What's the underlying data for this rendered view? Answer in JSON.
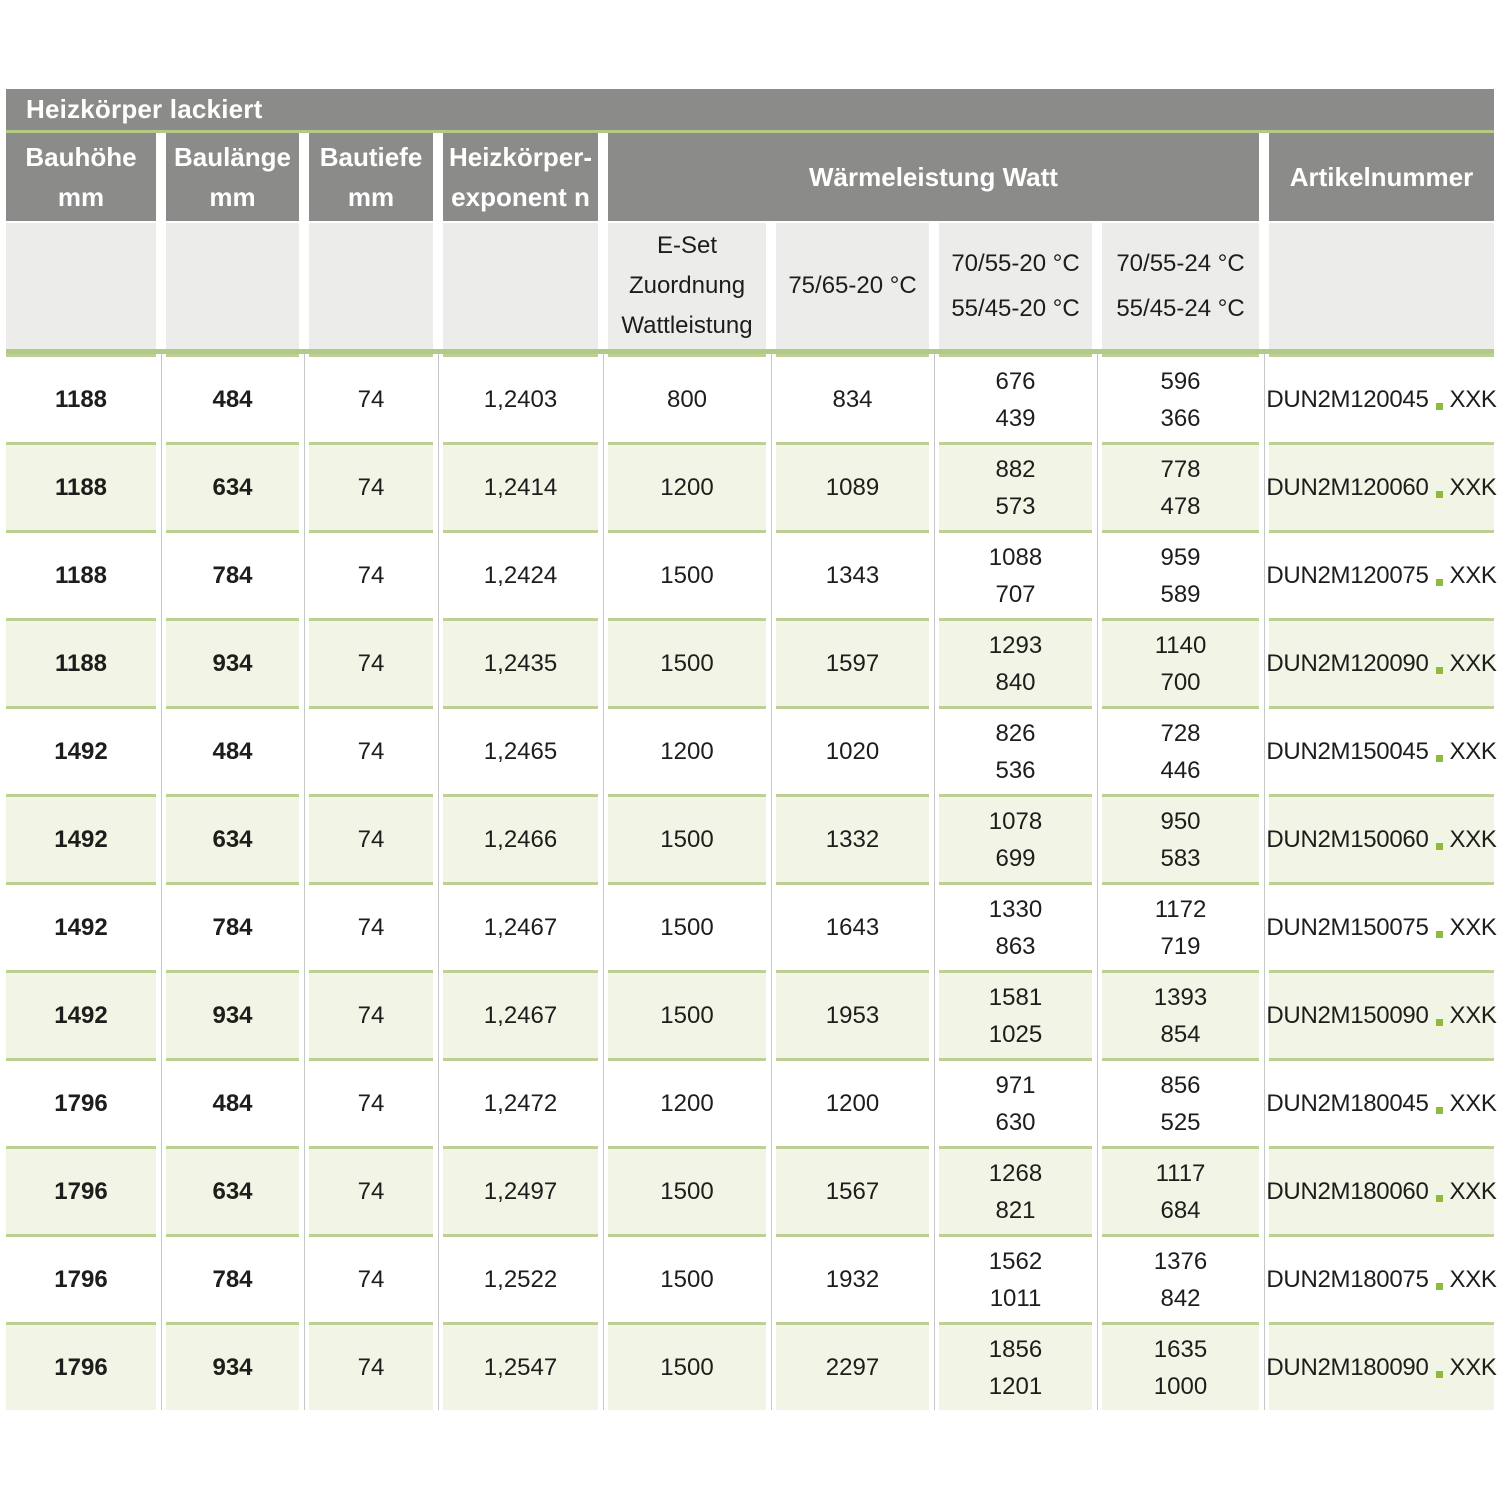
{
  "table": {
    "title": "Heizkörper lackiert",
    "main_headers": [
      {
        "id": "bauhoehe",
        "lines": [
          "Bauhöhe",
          "mm"
        ]
      },
      {
        "id": "baulaenge",
        "lines": [
          "Baulänge",
          "mm"
        ]
      },
      {
        "id": "bautiefe",
        "lines": [
          "Bautiefe",
          "mm"
        ]
      },
      {
        "id": "exponent",
        "lines": [
          "Heizkörper-",
          "exponent n"
        ]
      },
      {
        "id": "waermeleistung",
        "lines": [
          "Wärmeleistung Watt"
        ]
      },
      {
        "id": "artikelnummer",
        "lines": [
          "Artikelnummer"
        ]
      }
    ],
    "sub_headers": [
      {
        "id": "bauhoehe",
        "lines": []
      },
      {
        "id": "baulaenge",
        "lines": []
      },
      {
        "id": "bautiefe",
        "lines": []
      },
      {
        "id": "exponent",
        "lines": []
      },
      {
        "id": "eset",
        "lines": [
          "E-Set",
          "Zuordnung",
          "Wattleistung"
        ]
      },
      {
        "id": "w7565_20",
        "lines": [
          "75/65-20 °C"
        ]
      },
      {
        "id": "w7055_20",
        "lines": [
          "70/55-20 °C",
          "55/45-20 °C"
        ]
      },
      {
        "id": "w7055_24",
        "lines": [
          "70/55-24 °C",
          "55/45-24 °C"
        ]
      },
      {
        "id": "artikelnummer",
        "lines": []
      }
    ],
    "rows": [
      {
        "bauhoehe": "1188",
        "baulaenge": "484",
        "bautiefe": "74",
        "exponent_n": "1,2403",
        "eset_watt": "800",
        "w_7565_20": "834",
        "w_7055_20": [
          "676",
          "439"
        ],
        "w_7055_24": [
          "596",
          "366"
        ],
        "artikel": {
          "code": "DUN2M120045",
          "separator": ".",
          "suffix": "XXK"
        }
      },
      {
        "bauhoehe": "1188",
        "baulaenge": "634",
        "bautiefe": "74",
        "exponent_n": "1,2414",
        "eset_watt": "1200",
        "w_7565_20": "1089",
        "w_7055_20": [
          "882",
          "573"
        ],
        "w_7055_24": [
          "778",
          "478"
        ],
        "artikel": {
          "code": "DUN2M120060",
          "separator": ".",
          "suffix": "XXK"
        }
      },
      {
        "bauhoehe": "1188",
        "baulaenge": "784",
        "bautiefe": "74",
        "exponent_n": "1,2424",
        "eset_watt": "1500",
        "w_7565_20": "1343",
        "w_7055_20": [
          "1088",
          "707"
        ],
        "w_7055_24": [
          "959",
          "589"
        ],
        "artikel": {
          "code": "DUN2M120075",
          "separator": ".",
          "suffix": "XXK"
        }
      },
      {
        "bauhoehe": "1188",
        "baulaenge": "934",
        "bautiefe": "74",
        "exponent_n": "1,2435",
        "eset_watt": "1500",
        "w_7565_20": "1597",
        "w_7055_20": [
          "1293",
          "840"
        ],
        "w_7055_24": [
          "1140",
          "700"
        ],
        "artikel": {
          "code": "DUN2M120090",
          "separator": ".",
          "suffix": "XXK"
        }
      },
      {
        "bauhoehe": "1492",
        "baulaenge": "484",
        "bautiefe": "74",
        "exponent_n": "1,2465",
        "eset_watt": "1200",
        "w_7565_20": "1020",
        "w_7055_20": [
          "826",
          "536"
        ],
        "w_7055_24": [
          "728",
          "446"
        ],
        "artikel": {
          "code": "DUN2M150045",
          "separator": ".",
          "suffix": "XXK"
        }
      },
      {
        "bauhoehe": "1492",
        "baulaenge": "634",
        "bautiefe": "74",
        "exponent_n": "1,2466",
        "eset_watt": "1500",
        "w_7565_20": "1332",
        "w_7055_20": [
          "1078",
          "699"
        ],
        "w_7055_24": [
          "950",
          "583"
        ],
        "artikel": {
          "code": "DUN2M150060",
          "separator": ".",
          "suffix": "XXK"
        }
      },
      {
        "bauhoehe": "1492",
        "baulaenge": "784",
        "bautiefe": "74",
        "exponent_n": "1,2467",
        "eset_watt": "1500",
        "w_7565_20": "1643",
        "w_7055_20": [
          "1330",
          "863"
        ],
        "w_7055_24": [
          "1172",
          "719"
        ],
        "artikel": {
          "code": "DUN2M150075",
          "separator": ".",
          "suffix": "XXK"
        }
      },
      {
        "bauhoehe": "1492",
        "baulaenge": "934",
        "bautiefe": "74",
        "exponent_n": "1,2467",
        "eset_watt": "1500",
        "w_7565_20": "1953",
        "w_7055_20": [
          "1581",
          "1025"
        ],
        "w_7055_24": [
          "1393",
          "854"
        ],
        "artikel": {
          "code": "DUN2M150090",
          "separator": ".",
          "suffix": "XXK"
        }
      },
      {
        "bauhoehe": "1796",
        "baulaenge": "484",
        "bautiefe": "74",
        "exponent_n": "1,2472",
        "eset_watt": "1200",
        "w_7565_20": "1200",
        "w_7055_20": [
          "971",
          "630"
        ],
        "w_7055_24": [
          "856",
          "525"
        ],
        "artikel": {
          "code": "DUN2M180045",
          "separator": ".",
          "suffix": "XXK"
        }
      },
      {
        "bauhoehe": "1796",
        "baulaenge": "634",
        "bautiefe": "74",
        "exponent_n": "1,2497",
        "eset_watt": "1500",
        "w_7565_20": "1567",
        "w_7055_20": [
          "1268",
          "821"
        ],
        "w_7055_24": [
          "1117",
          "684"
        ],
        "artikel": {
          "code": "DUN2M180060",
          "separator": ".",
          "suffix": "XXK"
        }
      },
      {
        "bauhoehe": "1796",
        "baulaenge": "784",
        "bautiefe": "74",
        "exponent_n": "1,2522",
        "eset_watt": "1500",
        "w_7565_20": "1932",
        "w_7055_20": [
          "1562",
          "1011"
        ],
        "w_7055_24": [
          "1376",
          "842"
        ],
        "artikel": {
          "code": "DUN2M180075",
          "separator": ".",
          "suffix": "XXK"
        }
      },
      {
        "bauhoehe": "1796",
        "baulaenge": "934",
        "bautiefe": "74",
        "exponent_n": "1,2547",
        "eset_watt": "1500",
        "w_7565_20": "2297",
        "w_7055_20": [
          "1856",
          "1201"
        ],
        "w_7055_24": [
          "1635",
          "1000"
        ],
        "artikel": {
          "code": "DUN2M180090",
          "separator": ".",
          "suffix": "XXK"
        }
      }
    ],
    "colors": {
      "header_gray": "#8b8b89",
      "subheader_gray": "#ececeb",
      "row_alt_green": "#f2f4e6",
      "accent_line_green": "#b2ca85",
      "row_separator_green": "#bdd094",
      "column_divider_gray": "#c6c6c4",
      "artikel_dot_green": "#8fbb3d",
      "text_dark": "#1d1d1b",
      "header_text": "#ffffff"
    }
  }
}
